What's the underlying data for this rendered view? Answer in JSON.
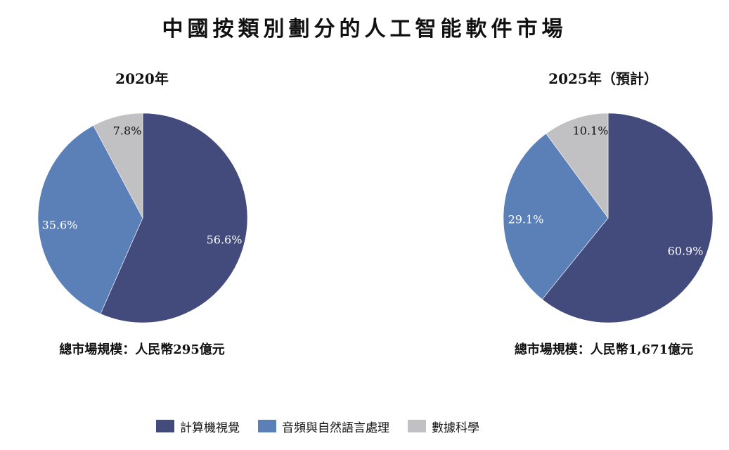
{
  "title": "中國按類別劃分的人工智能軟件市場",
  "colors": {
    "computer_vision": "#434b7c",
    "audio_nlp": "#5b80b8",
    "data_science": "#c1c1c3"
  },
  "legend": [
    {
      "label": "計算機視覺",
      "color": "#434b7c"
    },
    {
      "label": "音頻與自然語言處理",
      "color": "#5b80b8"
    },
    {
      "label": "數據科學",
      "color": "#c1c1c3"
    }
  ],
  "charts": [
    {
      "subtitle": "2020年",
      "total": "總市場規模：人民幣295億元"
    },
    {
      "subtitle": "2025年（預計）",
      "total": "總市場規模：人民幣1,671億元"
    }
  ],
  "chart_data": [
    {
      "type": "pie",
      "title": "2020年",
      "categories": [
        "計算機視覺",
        "音頻與自然語言處理",
        "數據科學"
      ],
      "values": [
        56.6,
        35.6,
        7.8
      ],
      "labels": [
        "56.6%",
        "35.6%",
        "7.8%"
      ],
      "label_colors": [
        "#ffffff",
        "#ffffff",
        "#111111"
      ],
      "colors": [
        "#434b7c",
        "#5b80b8",
        "#c1c1c3"
      ],
      "start": "12 o'clock, clockwise"
    },
    {
      "type": "pie",
      "title": "2025年（預計）",
      "categories": [
        "計算機視覺",
        "音頻與自然語言處理",
        "數據科學"
      ],
      "values": [
        60.9,
        29.1,
        10.1
      ],
      "labels": [
        "60.9%",
        "29.1%",
        "10.1%"
      ],
      "label_colors": [
        "#ffffff",
        "#ffffff",
        "#111111"
      ],
      "colors": [
        "#434b7c",
        "#5b80b8",
        "#c1c1c3"
      ],
      "start": "12 o'clock, clockwise"
    }
  ]
}
